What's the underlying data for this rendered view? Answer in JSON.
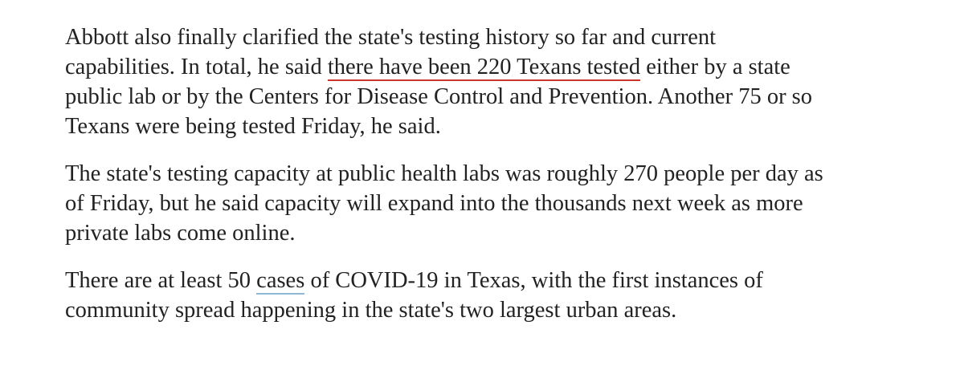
{
  "paragraphs": [
    {
      "line1": "Abbott also finally clarified the state's testing history so far and current",
      "line2_pre": "capabilities. In total, he said ",
      "line2_link": "there have been 220 Texans tested",
      "line2_post": " either by a state",
      "line3": "public lab or by the Centers for Disease Control and Prevention. Another 75 or so",
      "line4": "Texans were being tested Friday, he said."
    },
    {
      "line1": "The state's testing capacity at public health labs was roughly 270 people per day as",
      "line2": "of Friday, but he said capacity will expand into the thousands next week as more",
      "line3": "private labs come online."
    },
    {
      "line1_pre": "There are at least 50 ",
      "line1_link": "cases",
      "line1_post": " of COVID-19 in Texas, with the first instances of",
      "line2": "community spread happening in the state's two largest urban areas."
    }
  ],
  "colors": {
    "text": "#222222",
    "link_underline_primary": "#c8352a",
    "link_underline_secondary": "#8fb8d4"
  }
}
